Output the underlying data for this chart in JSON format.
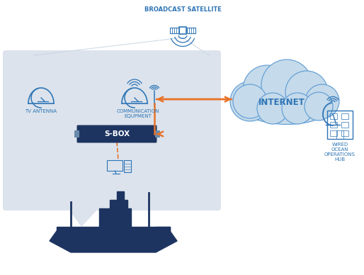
{
  "bg_color": "#ffffff",
  "panel_color": "#dce3ec",
  "blue_dark": "#1d3461",
  "blue_mid": "#2e75b6",
  "blue_light": "#5b9bd5",
  "blue_cloud": "#c5daea",
  "orange": "#e8732a",
  "sat_label": "BROADCAST SATELLITE",
  "tv_label": "TV ANTENNA",
  "comm_label": "COMMUNICATION\nEQUPMENT",
  "sbox_label": "S-BOX",
  "internet_label": "INTERNET",
  "hub_label": "WIRED\nOCEAN\nOPERATIONS\nHUB",
  "label_fs": 5.0,
  "sat_label_fs": 6.0,
  "internet_fs": 8.5,
  "hub_fs": 5.0,
  "sbox_fs": 7.5
}
